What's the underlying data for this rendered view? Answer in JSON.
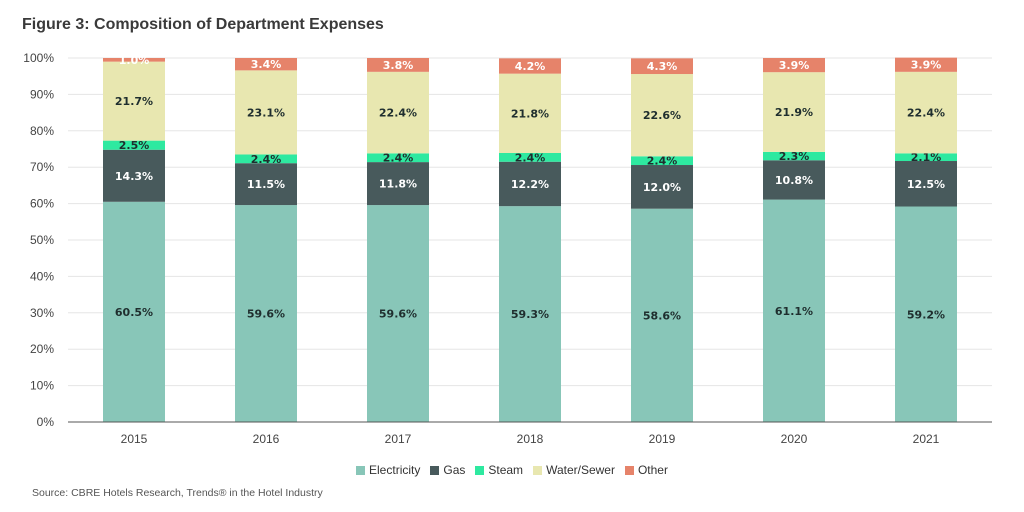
{
  "header": {
    "title": "Figure 3: Composition of Department Expenses"
  },
  "footer": {
    "source": "Source: CBRE Hotels Research, Trends® in the Hotel Industry"
  },
  "colors": {
    "Electricity": "#88c6b8",
    "Gas": "#485a5c",
    "Steam": "#2ee9a0",
    "Water/Sewer": "#e8e7b0",
    "Other": "#e6836a",
    "grid": "#e5e5e5",
    "axis": "#555555"
  },
  "chart_data": {
    "type": "bar",
    "stacked": true,
    "title": "Figure 3: Composition of Department Expenses",
    "xlabel": "",
    "ylabel": "",
    "ylim": [
      0,
      100
    ],
    "yticks": [
      "0%",
      "10%",
      "20%",
      "30%",
      "40%",
      "50%",
      "60%",
      "70%",
      "80%",
      "90%",
      "100%"
    ],
    "grid": true,
    "legend_position": "bottom",
    "categories": [
      "2015",
      "2016",
      "2017",
      "2018",
      "2019",
      "2020",
      "2021"
    ],
    "series": [
      {
        "name": "Electricity",
        "values": [
          60.5,
          59.6,
          59.6,
          59.3,
          58.6,
          61.1,
          59.2
        ],
        "labels": [
          "60.5%",
          "59.6%",
          "59.6%",
          "59.3%",
          "58.6%",
          "61.1%",
          "59.2%"
        ]
      },
      {
        "name": "Gas",
        "values": [
          14.3,
          11.5,
          11.8,
          12.2,
          12.0,
          10.8,
          12.5
        ],
        "labels": [
          "14.3%",
          "11.5%",
          "11.8%",
          "12.2%",
          "12.0%",
          "10.8%",
          "12.5%"
        ]
      },
      {
        "name": "Steam",
        "values": [
          2.5,
          2.4,
          2.4,
          2.4,
          2.4,
          2.3,
          2.1
        ],
        "labels": [
          "2.5%",
          "2.4%",
          "2.4%",
          "2.4%",
          "2.4%",
          "2.3%",
          "2.1%"
        ]
      },
      {
        "name": "Water/Sewer",
        "values": [
          21.7,
          23.1,
          22.4,
          21.8,
          22.6,
          21.9,
          22.4
        ],
        "labels": [
          "21.7%",
          "23.1%",
          "22.4%",
          "21.8%",
          "22.6%",
          "21.9%",
          "22.4%"
        ]
      },
      {
        "name": "Other",
        "values": [
          1.0,
          3.4,
          3.8,
          4.2,
          4.3,
          3.9,
          3.9
        ],
        "labels": [
          "1.0%",
          "3.4%",
          "3.8%",
          "4.2%",
          "4.3%",
          "3.9%",
          "3.9%"
        ]
      }
    ]
  }
}
